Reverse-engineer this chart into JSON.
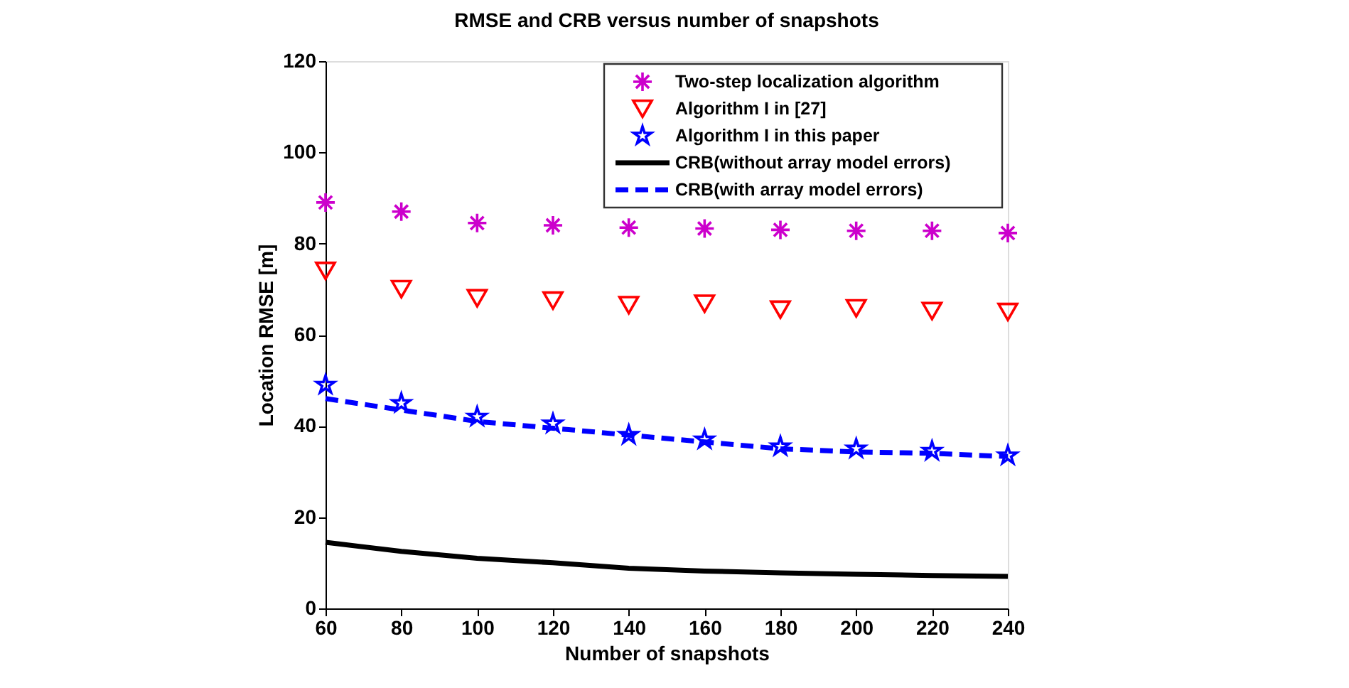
{
  "chart_data": {
    "type": "line",
    "title": "RMSE and CRB versus number of snapshots",
    "xlabel": "Number of snapshots",
    "ylabel": "Location RMSE [m]",
    "x": [
      60,
      80,
      100,
      120,
      140,
      160,
      180,
      200,
      220,
      240
    ],
    "series": [
      {
        "name": "Two-step localization algorithm",
        "type": "scatter",
        "marker": "cross",
        "color": "#cc00cc",
        "values": [
          89,
          87,
          84.5,
          84,
          83.5,
          83.3,
          83,
          82.8,
          82.8,
          82.3
        ]
      },
      {
        "name": "Algorithm I in [27]",
        "type": "scatter",
        "marker": "triangle",
        "color": "#ff0000",
        "values": [
          74,
          70,
          68,
          67.5,
          66.5,
          66.8,
          65.5,
          65.8,
          65.2,
          65
        ]
      },
      {
        "name": "Algorithm I in this paper",
        "type": "scatter",
        "marker": "star",
        "color": "#0000ff",
        "values": [
          49,
          45,
          42,
          40.5,
          38,
          37,
          35.5,
          35,
          34.5,
          33.5
        ]
      },
      {
        "name": "CRB(without array model errors)",
        "line_style": "solid",
        "color": "#000000",
        "values": [
          14.5,
          12.5,
          11,
          10,
          8.8,
          8.2,
          7.8,
          7.5,
          7.2,
          7
        ]
      },
      {
        "name": "CRB(with array model errors)",
        "line_style": "dashed",
        "color": "#0000ff",
        "values": [
          46,
          43.5,
          41,
          39.5,
          38,
          36.5,
          35,
          34.3,
          34,
          33.3
        ]
      }
    ],
    "xlim": [
      60,
      240
    ],
    "xticks": [
      60,
      80,
      100,
      120,
      140,
      160,
      180,
      200,
      220,
      240
    ],
    "ylim": [
      0,
      120
    ],
    "yticks": [
      0,
      20,
      40,
      60,
      80,
      100,
      120
    ],
    "legend": "top right",
    "grid": false
  }
}
